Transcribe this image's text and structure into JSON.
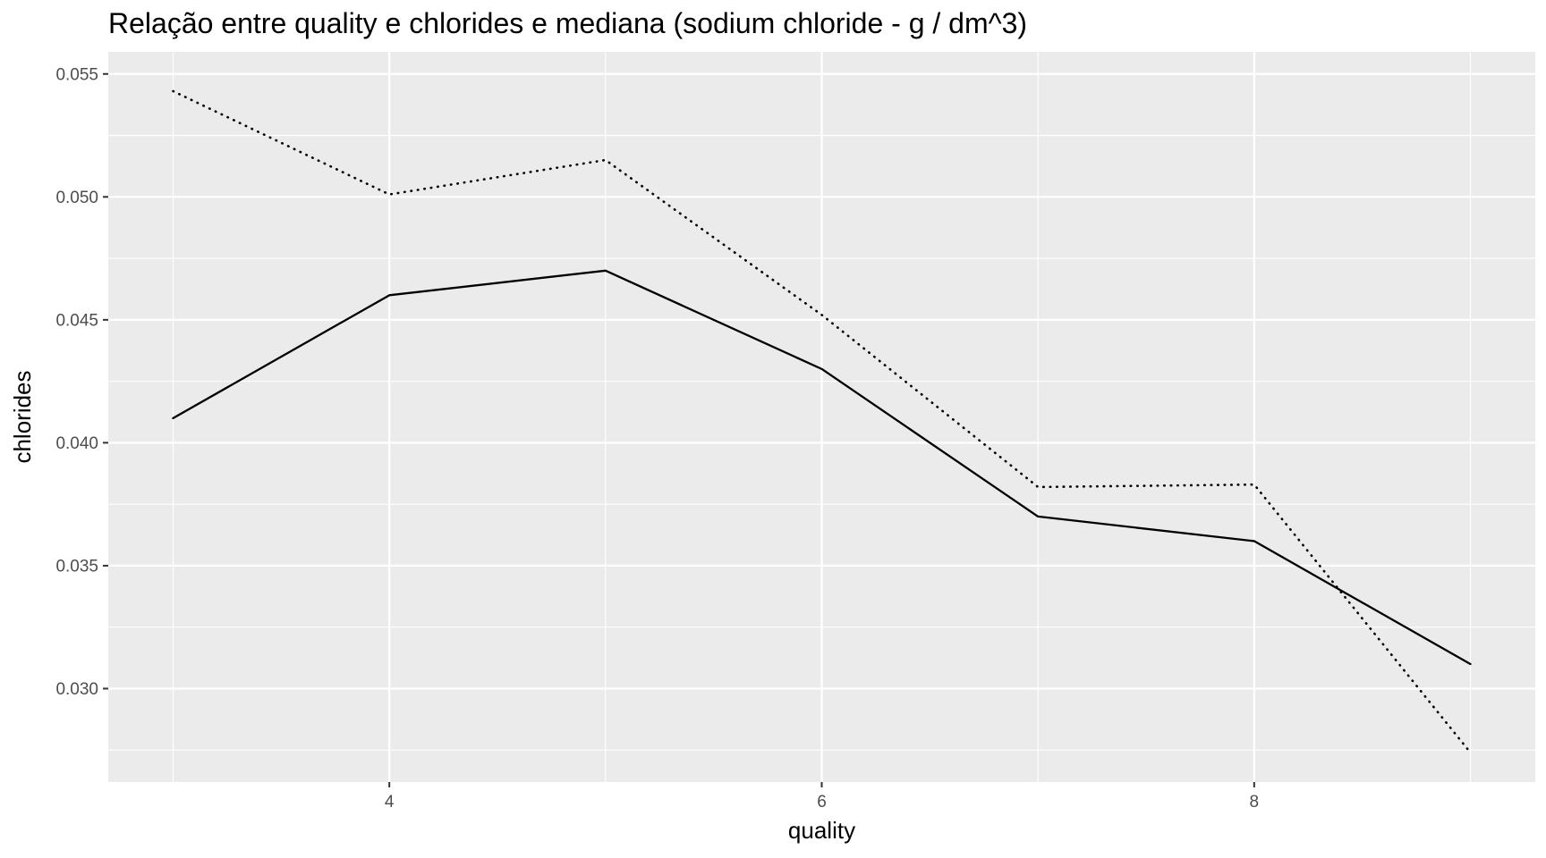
{
  "chart_data": {
    "type": "line",
    "title": "Relação entre quality e chlorides e mediana (sodium chloride - g / dm^3)",
    "xlabel": "quality",
    "ylabel": "chlorides",
    "xlim": [
      2.7,
      9.3
    ],
    "ylim": [
      0.0262,
      0.0559
    ],
    "x_ticks": [
      4,
      6,
      8
    ],
    "x_tick_labels": [
      "4",
      "6",
      "8"
    ],
    "y_ticks": [
      0.03,
      0.035,
      0.04,
      0.045,
      0.05,
      0.055
    ],
    "y_tick_labels": [
      "0.030",
      "0.035",
      "0.040",
      "0.045",
      "0.050",
      "0.055"
    ],
    "grid": true,
    "legend": "none",
    "panel_color": "#ebebeb",
    "grid_color": "#ffffff",
    "x": [
      3,
      4,
      5,
      6,
      7,
      8,
      9
    ],
    "series": [
      {
        "style": "solid",
        "color": "#000000",
        "values": [
          0.041,
          0.046,
          0.047,
          0.043,
          0.037,
          0.036,
          0.031
        ]
      },
      {
        "style": "dotted",
        "color": "#000000",
        "values": [
          0.0543,
          0.0501,
          0.0515,
          0.0452,
          0.0382,
          0.0383,
          0.0274
        ]
      }
    ]
  }
}
